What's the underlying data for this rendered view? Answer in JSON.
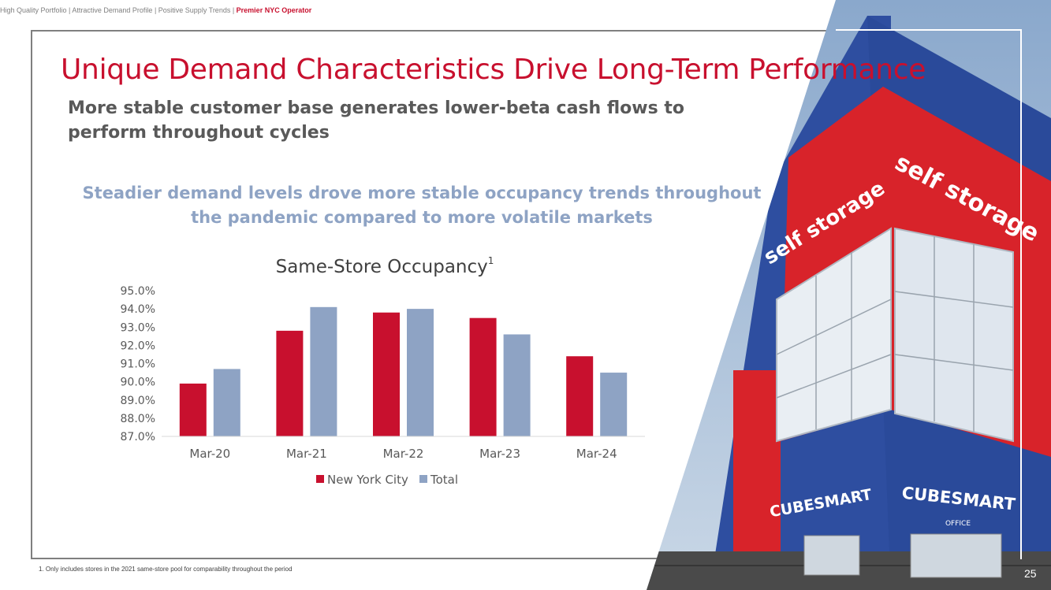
{
  "topbar": {
    "items": [
      "High Quality Portfolio",
      "Attractive Demand Profile",
      "Positive Supply Trends",
      "Premier NYC Operator"
    ],
    "separator": " | "
  },
  "title": "Unique Demand Characteristics Drive Long-Term Performance",
  "subtitle": "More stable customer base generates lower-beta cash flows to perform throughout cycles",
  "callout": "Steadier demand levels drove more stable occupancy trends throughout the pandemic compared to more volatile markets",
  "photo": {
    "sign_left": "self storage",
    "sign_right": "self storage",
    "brand_left": "CUBESMART",
    "brand_right": "CUBESMART",
    "office_label": "OFFICE"
  },
  "footnote": "1.   Only includes stores in the 2021 same-store pool for comparability throughout the period",
  "page_number": "25",
  "colors": {
    "accent": "#c8102e",
    "series_nyc": "#c8102e",
    "series_total": "#8ea3c4",
    "building_blue": "#2e4ea0",
    "building_red": "#d8232a"
  },
  "chart_data": {
    "type": "bar",
    "title": "Same-Store Occupancy",
    "title_superscript": "1",
    "categories": [
      "Mar-20",
      "Mar-21",
      "Mar-22",
      "Mar-23",
      "Mar-24"
    ],
    "series": [
      {
        "name": "New York City",
        "values": [
          89.9,
          92.8,
          93.8,
          93.5,
          91.4
        ]
      },
      {
        "name": "Total",
        "values": [
          90.7,
          94.1,
          94.0,
          92.6,
          90.5
        ]
      }
    ],
    "ylim": [
      87.0,
      95.0
    ],
    "yticks": [
      "87.0%",
      "88.0%",
      "89.0%",
      "90.0%",
      "91.0%",
      "92.0%",
      "93.0%",
      "94.0%",
      "95.0%"
    ],
    "ylabel": "",
    "xlabel": "",
    "legend": "bottom",
    "grid": false
  }
}
